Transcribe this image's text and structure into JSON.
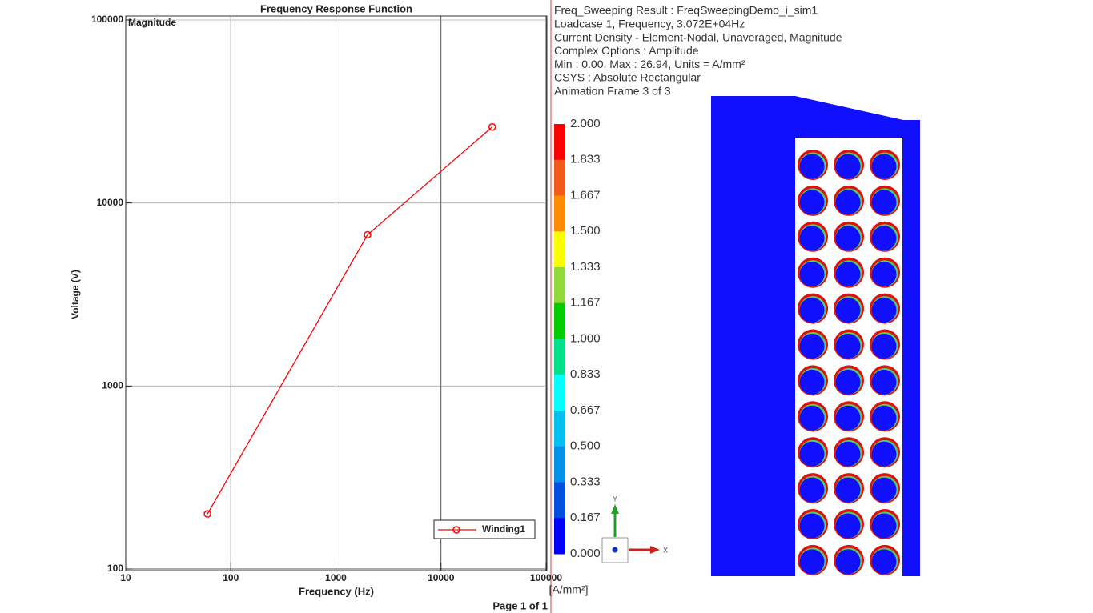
{
  "chart_data": {
    "type": "line",
    "title": "Frequency Response Function",
    "annotation": "Magnitude",
    "x_label": "Frequency (Hz)",
    "y_label": "Voltage (V)",
    "x": [
      60,
      2000,
      30720
    ],
    "series": [
      {
        "name": "Winding1",
        "color": "#ff0000",
        "values": [
          200,
          6700,
          26000
        ]
      }
    ],
    "xlim": [
      10,
      100000
    ],
    "xticks": [
      10,
      100,
      1000,
      10000,
      100000
    ],
    "ylim": [
      100,
      100000
    ],
    "yticks": [
      100,
      1000,
      10000,
      100000
    ],
    "log_x": true,
    "log_y": true,
    "grid": true,
    "legend_position": "lower right"
  },
  "page_label": "Page 1 of 1",
  "info": {
    "lines": [
      "Freq_Sweeping Result : FreqSweepingDemo_i_sim1",
      "Loadcase 1, Frequency, 3.072E+04Hz",
      "Current Density - Element-Nodal, Unaveraged, Magnitude",
      "Complex Options : Amplitude",
      "Min : 0.00, Max : 26.94, Units = A/mm²",
      "CSYS : Absolute Rectangular",
      "Animation Frame 3 of 3"
    ]
  },
  "colorbar": {
    "labels": [
      "2.000",
      "1.833",
      "1.667",
      "1.500",
      "1.333",
      "1.167",
      "1.000",
      "0.833",
      "0.667",
      "0.500",
      "0.333",
      "0.167",
      "0.000"
    ],
    "colors": [
      "#ff0000",
      "#f25a1a",
      "#ff8c00",
      "#ffff00",
      "#8fd93a",
      "#00cc00",
      "#00e08a",
      "#00ffff",
      "#00c0f0",
      "#0090e8",
      "#0050e0",
      "#0000ff"
    ],
    "unit": "[A/mm²]"
  },
  "triad": {
    "x": "X",
    "y": "Y"
  }
}
